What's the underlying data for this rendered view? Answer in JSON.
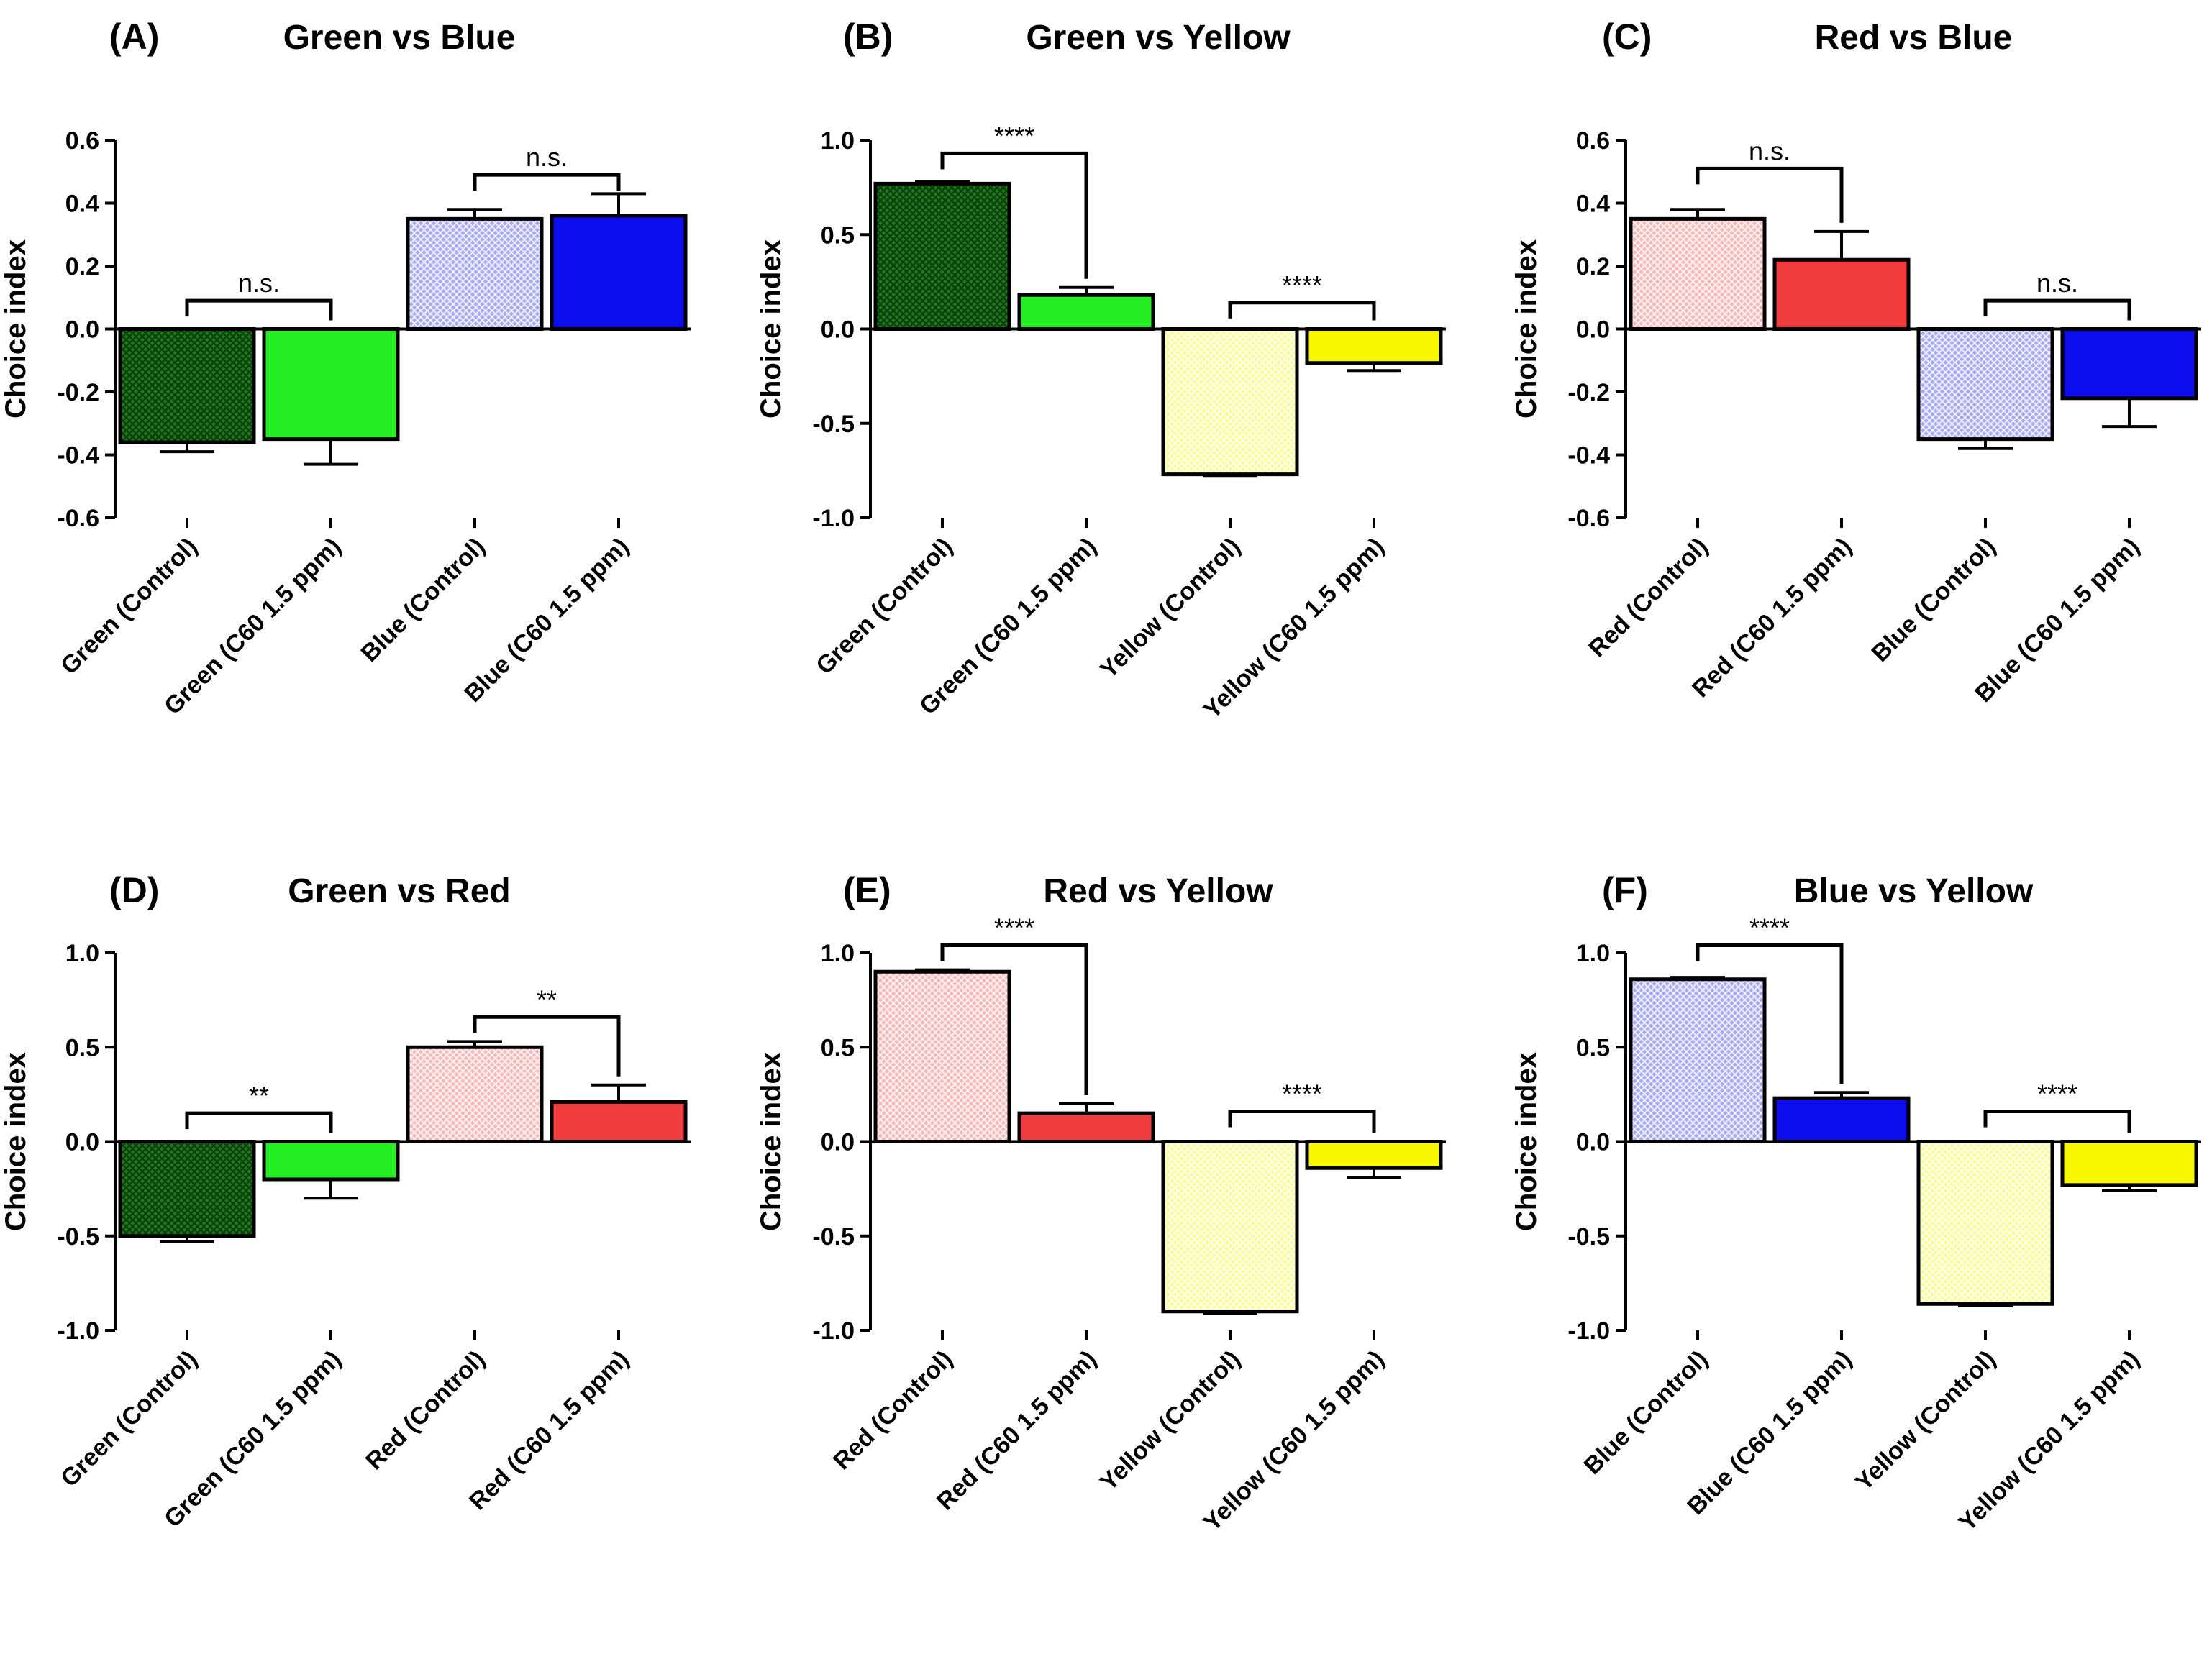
{
  "colors": {
    "green_dark": "#1f7a1f",
    "green_light": "#22ee22",
    "blue_light": "#a9a9f0",
    "blue": "#0d0dee",
    "red_light": "#f6b9b9",
    "red": "#f03c3c",
    "yellow_light": "#fbfb9a",
    "yellow": "#f7f700"
  },
  "chart_data": [
    {
      "panel": "(A)",
      "title": "Green vs Blue",
      "type": "bar",
      "ylabel": "Choice index",
      "ylim": [
        -0.6,
        0.6
      ],
      "yticks": [
        0.6,
        0.4,
        0.2,
        0.0,
        -0.2,
        -0.4,
        -0.6
      ],
      "ytick_labels": [
        "0.6",
        "0.4",
        "0.2",
        "0.0",
        "-0.2",
        "-0.4",
        "-0.6"
      ],
      "categories": [
        "Green (Control)",
        "Green (C60 1.5 ppm)",
        "Blue (Control)",
        "Blue (C60 1.5 ppm)"
      ],
      "values": [
        -0.36,
        -0.35,
        0.35,
        0.36
      ],
      "errors": [
        0.03,
        0.08,
        0.03,
        0.07
      ],
      "colors": [
        "green_dark",
        "green_light",
        "blue_light",
        "blue"
      ],
      "hatched": [
        true,
        false,
        true,
        false
      ],
      "significance": [
        {
          "pair": [
            0,
            1
          ],
          "label": "n.s.",
          "y": 0.09
        },
        {
          "pair": [
            2,
            3
          ],
          "label": "n.s.",
          "y": 0.49
        }
      ]
    },
    {
      "panel": "(B)",
      "title": "Green vs Yellow",
      "type": "bar",
      "ylabel": "Choice index",
      "ylim": [
        -1.0,
        1.0
      ],
      "yticks": [
        1.0,
        0.5,
        0.0,
        -0.5,
        -1.0
      ],
      "ytick_labels": [
        "1.0",
        "0.5",
        "0.0",
        "-0.5",
        "-1.0"
      ],
      "categories": [
        "Green (Control)",
        "Green (C60 1.5 ppm)",
        "Yellow (Control)",
        "Yellow (C60 1.5 ppm)"
      ],
      "values": [
        0.77,
        0.18,
        -0.77,
        -0.18
      ],
      "errors": [
        0.01,
        0.04,
        0.01,
        0.04
      ],
      "colors": [
        "green_dark",
        "green_light",
        "yellow_light",
        "yellow"
      ],
      "hatched": [
        true,
        false,
        true,
        false
      ],
      "significance": [
        {
          "pair": [
            0,
            1
          ],
          "label": "****",
          "y": 0.93
        },
        {
          "pair": [
            2,
            3
          ],
          "label": "****",
          "y": 0.14
        }
      ]
    },
    {
      "panel": "(C)",
      "title": "Red vs Blue",
      "type": "bar",
      "ylabel": "Choice index",
      "ylim": [
        -0.6,
        0.6
      ],
      "yticks": [
        0.6,
        0.4,
        0.2,
        0.0,
        -0.2,
        -0.4,
        -0.6
      ],
      "ytick_labels": [
        "0.6",
        "0.4",
        "0.2",
        "0.0",
        "-0.2",
        "-0.4",
        "-0.6"
      ],
      "categories": [
        "Red (Control)",
        "Red (C60 1.5 ppm)",
        "Blue (Control)",
        "Blue (C60 1.5 ppm)"
      ],
      "values": [
        0.35,
        0.22,
        -0.35,
        -0.22
      ],
      "errors": [
        0.03,
        0.09,
        0.03,
        0.09
      ],
      "colors": [
        "red_light",
        "red",
        "blue_light",
        "blue"
      ],
      "hatched": [
        true,
        false,
        true,
        false
      ],
      "significance": [
        {
          "pair": [
            0,
            1
          ],
          "label": "n.s.",
          "y": 0.51
        },
        {
          "pair": [
            2,
            3
          ],
          "label": "n.s.",
          "y": 0.09
        }
      ]
    },
    {
      "panel": "(D)",
      "title": "Green vs Red",
      "type": "bar",
      "ylabel": "Choice index",
      "ylim": [
        -1.0,
        1.0
      ],
      "yticks": [
        1.0,
        0.5,
        0.0,
        -0.5,
        -1.0
      ],
      "ytick_labels": [
        "1.0",
        "0.5",
        "0.0",
        "-0.5",
        "-1.0"
      ],
      "categories": [
        "Green (Control)",
        "Green (C60 1.5 ppm)",
        "Red (Control)",
        "Red (C60 1.5 ppm)"
      ],
      "values": [
        -0.5,
        -0.2,
        0.5,
        0.21
      ],
      "errors": [
        0.03,
        0.1,
        0.03,
        0.09
      ],
      "colors": [
        "green_dark",
        "green_light",
        "red_light",
        "red"
      ],
      "hatched": [
        true,
        false,
        true,
        false
      ],
      "significance": [
        {
          "pair": [
            0,
            1
          ],
          "label": "**",
          "y": 0.15
        },
        {
          "pair": [
            2,
            3
          ],
          "label": "**",
          "y": 0.66
        }
      ]
    },
    {
      "panel": "(E)",
      "title": "Red vs Yellow",
      "type": "bar",
      "ylabel": "Choice index",
      "ylim": [
        -1.0,
        1.0
      ],
      "yticks": [
        1.0,
        0.5,
        0.0,
        -0.5,
        -1.0
      ],
      "ytick_labels": [
        "1.0",
        "0.5",
        "0.0",
        "-0.5",
        "-1.0"
      ],
      "categories": [
        "Red (Control)",
        "Red (C60 1.5 ppm)",
        "Yellow (Control)",
        "Yellow (C60 1.5 ppm)"
      ],
      "values": [
        0.9,
        0.15,
        -0.9,
        -0.14
      ],
      "errors": [
        0.01,
        0.05,
        0.01,
        0.05
      ],
      "colors": [
        "red_light",
        "red",
        "yellow_light",
        "yellow"
      ],
      "hatched": [
        true,
        false,
        true,
        false
      ],
      "significance": [
        {
          "pair": [
            0,
            1
          ],
          "label": "****",
          "y": 1.04
        },
        {
          "pair": [
            2,
            3
          ],
          "label": "****",
          "y": 0.16
        }
      ]
    },
    {
      "panel": "(F)",
      "title": "Blue vs Yellow",
      "type": "bar",
      "ylabel": "Choice index",
      "ylim": [
        -1.0,
        1.0
      ],
      "yticks": [
        1.0,
        0.5,
        0.0,
        -0.5,
        -1.0
      ],
      "ytick_labels": [
        "1.0",
        "0.5",
        "0.0",
        "-0.5",
        "-1.0"
      ],
      "categories": [
        "Blue (Control)",
        "Blue (C60 1.5 ppm)",
        "Yellow (Control)",
        "Yellow (C60 1.5 ppm)"
      ],
      "values": [
        0.86,
        0.23,
        -0.86,
        -0.23
      ],
      "errors": [
        0.01,
        0.03,
        0.01,
        0.03
      ],
      "colors": [
        "blue_light",
        "blue",
        "yellow_light",
        "yellow"
      ],
      "hatched": [
        true,
        false,
        true,
        false
      ],
      "significance": [
        {
          "pair": [
            0,
            1
          ],
          "label": "****",
          "y": 1.04
        },
        {
          "pair": [
            2,
            3
          ],
          "label": "****",
          "y": 0.16
        }
      ]
    }
  ]
}
